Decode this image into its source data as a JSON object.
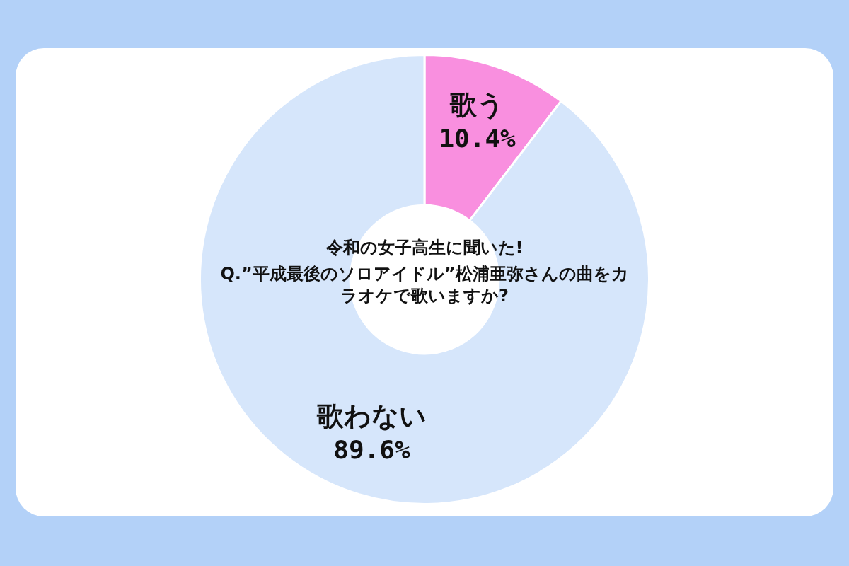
{
  "chart_data": {
    "type": "donut",
    "title": "令和の女子高生に聞いた!",
    "subtitle": "Q.”平成最後のソロアイドル”松浦亜弥さんの曲をカラオケで歌いますか?",
    "categories": [
      "歌う",
      "歌わない"
    ],
    "values": [
      10.4,
      89.6
    ],
    "colors": [
      "#f98fdf",
      "#d6e6fb"
    ],
    "value_labels": [
      "10.4%",
      "89.6%"
    ],
    "legend": false
  }
}
